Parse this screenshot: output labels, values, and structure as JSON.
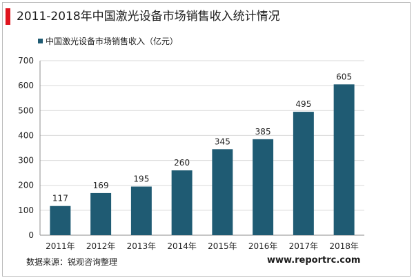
{
  "title": "2011-2018年中国激光设备市场销售收入统计情况",
  "source": "数据来源：锐观咨询整理",
  "website": "www.reportrc.com",
  "colors": {
    "accent": "#e0141e",
    "bar": "#1f5b73",
    "grid": "#d9d9d9",
    "axis": "#8c8c8c"
  },
  "chart_data": {
    "type": "bar",
    "categories": [
      "2011年",
      "2012年",
      "2013年",
      "2014年",
      "2015年",
      "2016年",
      "2017年",
      "2018年"
    ],
    "series": [
      {
        "name": "中国激光设备市场销售收入（亿元）",
        "values": [
          117,
          169,
          195,
          260,
          345,
          385,
          495,
          605
        ]
      }
    ],
    "ylim": [
      0,
      700
    ],
    "yticks": [
      0,
      100,
      200,
      300,
      400,
      500,
      600,
      700
    ],
    "grid": true,
    "legend": "top-left",
    "data_labels": true
  }
}
